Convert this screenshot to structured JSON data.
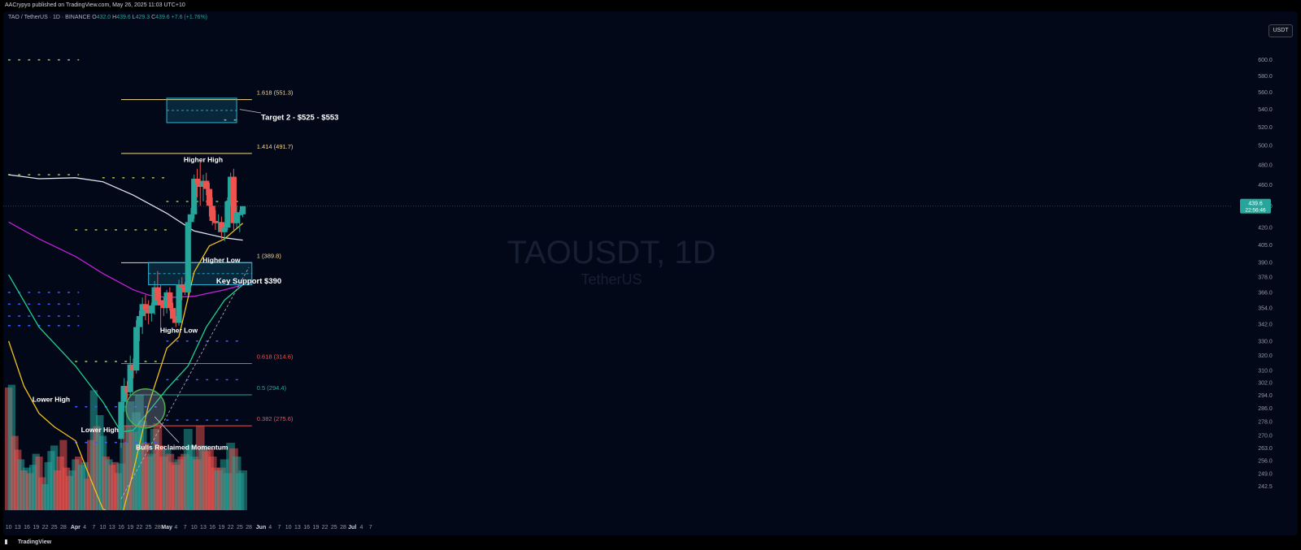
{
  "header": {
    "publisher": "AACrypyo published on TradingView.com, May 26, 2025 11:03 UTC+10",
    "symbol_line": "TAO / TetherUS · 1D · BINANCE",
    "ohlc": {
      "o_label": "O",
      "o": "432.0",
      "h_label": "H",
      "h": "439.6",
      "l_label": "L",
      "l": "429.3",
      "c_label": "C",
      "c": "439.6",
      "change": "+7.6 (+1.76%)"
    }
  },
  "currency": "USDT",
  "watermark": {
    "symbol": "TAOUSDT, 1D",
    "name": "TetherUS"
  },
  "footer": {
    "brand": "TradingView"
  },
  "colors": {
    "bull": "#26a69a",
    "bear": "#ef5350",
    "background": "#020818",
    "ema_white": "#e0e3eb",
    "ema_magenta": "#c320d8",
    "ema_green": "#1fcf8f",
    "ema_yellow": "#f2c318",
    "zone": "#29b6d8"
  },
  "chart_data": {
    "type": "candlestick",
    "timeframe": "1D",
    "y_axis": {
      "scale": "log",
      "range": [
        236,
        625
      ],
      "ticks": [
        242.5,
        249.0,
        256.0,
        263.0,
        270.0,
        278.0,
        286.0,
        294.0,
        302.0,
        310.0,
        320.0,
        330.0,
        342.0,
        354.0,
        366.0,
        378.0,
        390.0,
        405.0,
        420.0,
        440.0,
        460.0,
        480.0,
        500.0,
        520.0,
        540.0,
        560.0,
        580.0,
        600.0
      ]
    },
    "x_axis": {
      "tick_labels": [
        "10",
        "13",
        "16",
        "19",
        "22",
        "25",
        "28",
        "Apr",
        "4",
        "7",
        "10",
        "13",
        "16",
        "19",
        "22",
        "25",
        "28",
        "May",
        "4",
        "7",
        "10",
        "13",
        "16",
        "19",
        "22",
        "25",
        "28",
        "Jun",
        "4",
        "7",
        "10",
        "13",
        "16",
        "19",
        "22",
        "25",
        "28",
        "Jul",
        "4",
        "7"
      ],
      "range": [
        "2025-03-10",
        "2025-07-09"
      ]
    },
    "price_label": {
      "value": "439.6",
      "countdown": "22:56:46"
    },
    "candles": [
      {
        "d": "2025-04-16",
        "o": 268,
        "h": 300,
        "l": 263,
        "c": 290
      },
      {
        "d": "2025-04-17",
        "o": 290,
        "h": 305,
        "l": 284,
        "c": 300
      },
      {
        "d": "2025-04-18",
        "o": 300,
        "h": 303,
        "l": 292,
        "c": 296
      },
      {
        "d": "2025-04-19",
        "o": 296,
        "h": 320,
        "l": 294,
        "c": 314
      },
      {
        "d": "2025-04-20",
        "o": 314,
        "h": 318,
        "l": 305,
        "c": 310
      },
      {
        "d": "2025-04-21",
        "o": 310,
        "h": 345,
        "l": 308,
        "c": 340
      },
      {
        "d": "2025-04-22",
        "o": 340,
        "h": 352,
        "l": 330,
        "c": 348
      },
      {
        "d": "2025-04-23",
        "o": 348,
        "h": 362,
        "l": 335,
        "c": 357
      },
      {
        "d": "2025-04-24",
        "o": 357,
        "h": 364,
        "l": 345,
        "c": 353
      },
      {
        "d": "2025-04-25",
        "o": 353,
        "h": 360,
        "l": 342,
        "c": 350
      },
      {
        "d": "2025-04-26",
        "o": 350,
        "h": 358,
        "l": 344,
        "c": 356
      },
      {
        "d": "2025-04-27",
        "o": 356,
        "h": 375,
        "l": 349,
        "c": 370
      },
      {
        "d": "2025-04-28",
        "o": 370,
        "h": 383,
        "l": 356,
        "c": 360
      },
      {
        "d": "2025-04-29",
        "o": 360,
        "h": 372,
        "l": 338,
        "c": 356
      },
      {
        "d": "2025-04-30",
        "o": 356,
        "h": 362,
        "l": 348,
        "c": 354
      },
      {
        "d": "2025-05-01",
        "o": 354,
        "h": 368,
        "l": 350,
        "c": 366
      },
      {
        "d": "2025-05-02",
        "o": 366,
        "h": 370,
        "l": 352,
        "c": 354
      },
      {
        "d": "2025-05-03",
        "o": 354,
        "h": 358,
        "l": 343,
        "c": 346
      },
      {
        "d": "2025-05-04",
        "o": 346,
        "h": 348,
        "l": 340,
        "c": 343
      },
      {
        "d": "2025-05-05",
        "o": 343,
        "h": 376,
        "l": 341,
        "c": 372
      },
      {
        "d": "2025-05-06",
        "o": 372,
        "h": 378,
        "l": 360,
        "c": 370
      },
      {
        "d": "2025-05-07",
        "o": 370,
        "h": 374,
        "l": 364,
        "c": 366
      },
      {
        "d": "2025-05-08",
        "o": 366,
        "h": 432,
        "l": 364,
        "c": 425
      },
      {
        "d": "2025-05-09",
        "o": 425,
        "h": 438,
        "l": 416,
        "c": 432
      },
      {
        "d": "2025-05-10",
        "o": 432,
        "h": 470,
        "l": 428,
        "c": 466
      },
      {
        "d": "2025-05-11",
        "o": 466,
        "h": 476,
        "l": 448,
        "c": 461
      },
      {
        "d": "2025-05-12",
        "o": 461,
        "h": 483,
        "l": 440,
        "c": 458
      },
      {
        "d": "2025-05-13",
        "o": 458,
        "h": 470,
        "l": 444,
        "c": 464
      },
      {
        "d": "2025-05-14",
        "o": 464,
        "h": 472,
        "l": 450,
        "c": 456
      },
      {
        "d": "2025-05-15",
        "o": 456,
        "h": 462,
        "l": 430,
        "c": 440
      },
      {
        "d": "2025-05-16",
        "o": 440,
        "h": 448,
        "l": 422,
        "c": 426
      },
      {
        "d": "2025-05-17",
        "o": 426,
        "h": 436,
        "l": 418,
        "c": 424
      },
      {
        "d": "2025-05-18",
        "o": 424,
        "h": 432,
        "l": 416,
        "c": 425
      },
      {
        "d": "2025-05-19",
        "o": 425,
        "h": 430,
        "l": 410,
        "c": 416
      },
      {
        "d": "2025-05-20",
        "o": 416,
        "h": 424,
        "l": 408,
        "c": 420
      },
      {
        "d": "2025-05-21",
        "o": 420,
        "h": 448,
        "l": 418,
        "c": 444
      },
      {
        "d": "2025-05-22",
        "o": 444,
        "h": 472,
        "l": 440,
        "c": 468
      },
      {
        "d": "2025-05-23",
        "o": 468,
        "h": 476,
        "l": 418,
        "c": 424
      },
      {
        "d": "2025-05-24",
        "o": 424,
        "h": 440,
        "l": 420,
        "c": 434
      },
      {
        "d": "2025-05-25",
        "o": 432,
        "h": 436,
        "l": 416,
        "c": 432
      },
      {
        "d": "2025-05-26",
        "o": 432,
        "h": 439.6,
        "l": 429.3,
        "c": 439.6
      }
    ],
    "early_volume": [
      {
        "d": "2025-03-10",
        "v": 0.9,
        "b": false
      },
      {
        "d": "2025-03-11",
        "v": 0.92,
        "b": true
      },
      {
        "d": "2025-03-12",
        "v": 0.55,
        "b": false
      },
      {
        "d": "2025-03-13",
        "v": 0.45,
        "b": false
      },
      {
        "d": "2025-03-14",
        "v": 0.38,
        "b": true
      },
      {
        "d": "2025-03-15",
        "v": 0.3,
        "b": false
      },
      {
        "d": "2025-03-16",
        "v": 0.32,
        "b": true
      },
      {
        "d": "2025-03-17",
        "v": 0.28,
        "b": false
      },
      {
        "d": "2025-03-18",
        "v": 0.34,
        "b": true
      },
      {
        "d": "2025-03-19",
        "v": 0.42,
        "b": true
      },
      {
        "d": "2025-03-20",
        "v": 0.4,
        "b": false
      },
      {
        "d": "2025-03-21",
        "v": 0.25,
        "b": false
      },
      {
        "d": "2025-03-22",
        "v": 0.2,
        "b": true
      },
      {
        "d": "2025-03-23",
        "v": 0.36,
        "b": true
      },
      {
        "d": "2025-03-24",
        "v": 0.44,
        "b": true
      },
      {
        "d": "2025-03-25",
        "v": 0.48,
        "b": true
      },
      {
        "d": "2025-03-26",
        "v": 0.3,
        "b": false
      },
      {
        "d": "2025-03-27",
        "v": 0.4,
        "b": false
      },
      {
        "d": "2025-03-28",
        "v": 0.52,
        "b": false
      },
      {
        "d": "2025-03-29",
        "v": 0.32,
        "b": false
      },
      {
        "d": "2025-03-30",
        "v": 0.26,
        "b": false
      },
      {
        "d": "2025-03-31",
        "v": 0.3,
        "b": true
      },
      {
        "d": "2025-04-01",
        "v": 0.38,
        "b": true
      },
      {
        "d": "2025-04-02",
        "v": 0.4,
        "b": false
      },
      {
        "d": "2025-04-03",
        "v": 0.34,
        "b": true
      },
      {
        "d": "2025-04-04",
        "v": 0.36,
        "b": true
      },
      {
        "d": "2025-04-05",
        "v": 0.24,
        "b": false
      },
      {
        "d": "2025-04-06",
        "v": 0.52,
        "b": false
      },
      {
        "d": "2025-04-07",
        "v": 0.88,
        "b": true
      },
      {
        "d": "2025-04-08",
        "v": 0.62,
        "b": false
      },
      {
        "d": "2025-04-09",
        "v": 0.7,
        "b": true
      },
      {
        "d": "2025-04-10",
        "v": 0.55,
        "b": true
      },
      {
        "d": "2025-04-11",
        "v": 0.4,
        "b": false
      },
      {
        "d": "2025-04-12",
        "v": 0.38,
        "b": true
      },
      {
        "d": "2025-04-13",
        "v": 0.34,
        "b": false
      },
      {
        "d": "2025-04-14",
        "v": 0.36,
        "b": false
      },
      {
        "d": "2025-04-15",
        "v": 0.28,
        "b": false
      }
    ],
    "late_volume": [
      0.35,
      0.5,
      0.62,
      0.8,
      0.58,
      0.72,
      0.85,
      0.66,
      0.5,
      0.4,
      0.42,
      0.6,
      0.64,
      0.48,
      0.4,
      0.45,
      0.42,
      0.36,
      0.34,
      0.38,
      0.4,
      0.42,
      0.6,
      0.48,
      0.4,
      0.38,
      0.62,
      0.48,
      0.44,
      0.46,
      0.4,
      0.32,
      0.3,
      0.32,
      0.38,
      0.28,
      0.5,
      0.46,
      0.4,
      0.28,
      0.3
    ],
    "moving_averages": [
      {
        "color": "#e0e3eb",
        "points": [
          [
            "2025-03-10",
            470
          ],
          [
            "2025-03-20",
            466
          ],
          [
            "2025-04-01",
            467
          ],
          [
            "2025-04-10",
            463
          ],
          [
            "2025-04-20",
            450
          ],
          [
            "2025-05-01",
            433
          ],
          [
            "2025-05-10",
            417
          ],
          [
            "2025-05-20",
            411
          ],
          [
            "2025-05-26",
            409
          ]
        ]
      },
      {
        "color": "#c320d8",
        "points": [
          [
            "2025-03-10",
            425
          ],
          [
            "2025-03-20",
            410
          ],
          [
            "2025-04-01",
            395
          ],
          [
            "2025-04-10",
            381
          ],
          [
            "2025-04-20",
            368
          ],
          [
            "2025-04-25",
            364
          ],
          [
            "2025-05-01",
            362
          ],
          [
            "2025-05-10",
            363
          ],
          [
            "2025-05-20",
            368
          ],
          [
            "2025-05-26",
            372
          ]
        ]
      },
      {
        "color": "#1fcf8f",
        "points": [
          [
            "2025-03-10",
            380
          ],
          [
            "2025-03-20",
            340
          ],
          [
            "2025-04-01",
            313
          ],
          [
            "2025-04-10",
            290
          ],
          [
            "2025-04-16",
            272
          ],
          [
            "2025-04-20",
            273
          ],
          [
            "2025-04-25",
            284
          ],
          [
            "2025-05-01",
            298
          ],
          [
            "2025-05-08",
            313
          ],
          [
            "2025-05-14",
            340
          ],
          [
            "2025-05-20",
            360
          ],
          [
            "2025-05-26",
            372
          ]
        ]
      },
      {
        "color": "#f2c318",
        "points": [
          [
            "2025-03-10",
            330
          ],
          [
            "2025-03-15",
            300
          ],
          [
            "2025-03-20",
            283
          ],
          [
            "2025-03-25",
            275
          ],
          [
            "2025-04-01",
            267
          ],
          [
            "2025-04-05",
            250
          ],
          [
            "2025-04-10",
            231
          ],
          [
            "2025-04-16",
            226
          ],
          [
            "2025-04-20",
            250
          ],
          [
            "2025-04-25",
            288
          ],
          [
            "2025-05-01",
            325
          ],
          [
            "2025-05-05",
            333
          ],
          [
            "2025-05-10",
            382
          ],
          [
            "2025-05-15",
            404
          ],
          [
            "2025-05-20",
            410
          ],
          [
            "2025-05-26",
            424
          ]
        ]
      }
    ],
    "fib_levels": [
      {
        "label": "1.618 (551.3)",
        "value": 551.3,
        "color": "#f5d88c"
      },
      {
        "label": "1.414 (491.7)",
        "value": 491.7,
        "color": "#f5d88c"
      },
      {
        "label": "1 (389.8)",
        "value": 389.8,
        "color": "#f5d88c"
      },
      {
        "label": "0.618 (314.6)",
        "value": 314.6,
        "color": "#ef5350"
      },
      {
        "label": "0.5 (294.4)",
        "value": 294.4,
        "color": "#26a69a"
      },
      {
        "label": "0.382 (275.6)",
        "value": 275.6,
        "color": "#ef5350"
      }
    ],
    "annotations": [
      {
        "text": "Target 2 - $525 - $553",
        "date": "2025-06-01",
        "value": 528
      },
      {
        "text": "Higher High",
        "date": "2025-05-13",
        "value": 483
      },
      {
        "text": "Higher Low",
        "date": "2025-05-19",
        "value": 390
      },
      {
        "text": "Key Support $390",
        "date": "2025-05-28",
        "value": 373
      },
      {
        "text": "Higher Low",
        "date": "2025-05-05",
        "value": 336
      },
      {
        "text": "Lower High",
        "date": "2025-03-24",
        "value": 290
      },
      {
        "text": "Lower High",
        "date": "2025-04-09",
        "value": 272
      },
      {
        "text": "Bulls Reclaimed Momentum",
        "date": "2025-05-06",
        "value": 262
      }
    ]
  }
}
